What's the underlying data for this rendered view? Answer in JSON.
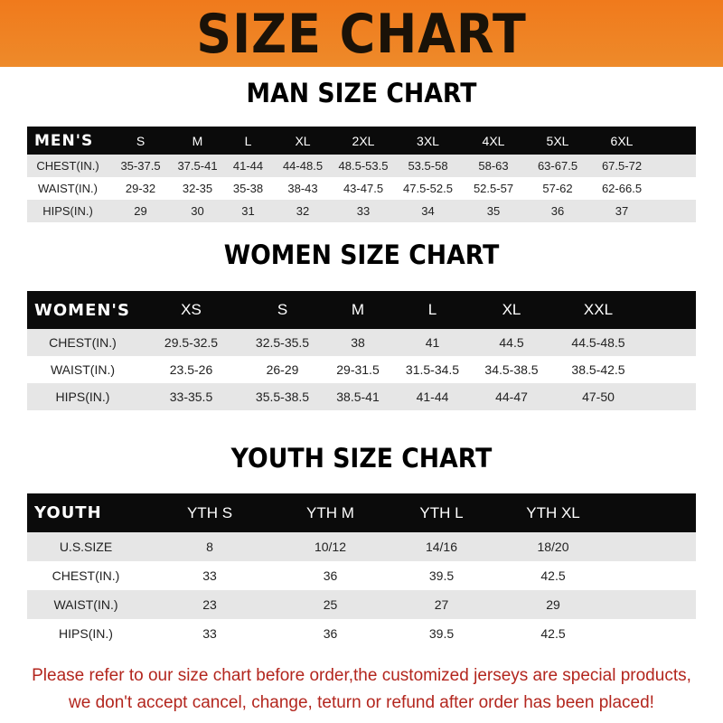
{
  "title": "SIZE CHART",
  "colors": {
    "banner": "#f07a1c",
    "header_row": "#0b0b0b",
    "notice": "#b3261e"
  },
  "men": {
    "title": "MAN SIZE CHART",
    "header": [
      "MEN'S",
      "S",
      "M",
      "L",
      "XL",
      "2XL",
      "3XL",
      "4XL",
      "5XL",
      "6XL"
    ],
    "rows": [
      [
        "CHEST(IN.)",
        "35-37.5",
        "37.5-41",
        "41-44",
        "44-48.5",
        "48.5-53.5",
        "53.5-58",
        "58-63",
        "63-67.5",
        "67.5-72"
      ],
      [
        "WAIST(IN.)",
        "29-32",
        "32-35",
        "35-38",
        "38-43",
        "43-47.5",
        "47.5-52.5",
        "52.5-57",
        "57-62",
        "62-66.5"
      ],
      [
        "HIPS(IN.)",
        "29",
        "30",
        "31",
        "32",
        "33",
        "34",
        "35",
        "36",
        "37"
      ]
    ]
  },
  "women": {
    "title": "WOMEN SIZE CHART",
    "header": [
      "WOMEN'S",
      "XS",
      "S",
      "M",
      "L",
      "XL",
      "XXL"
    ],
    "rows": [
      [
        "CHEST(IN.)",
        "29.5-32.5",
        "32.5-35.5",
        "38",
        "41",
        "44.5",
        "44.5-48.5"
      ],
      [
        "WAIST(IN.)",
        "23.5-26",
        "26-29",
        "29-31.5",
        "31.5-34.5",
        "34.5-38.5",
        "38.5-42.5"
      ],
      [
        "HIPS(IN.)",
        "33-35.5",
        "35.5-38.5",
        "38.5-41",
        "41-44",
        "44-47",
        "47-50"
      ]
    ]
  },
  "youth": {
    "title": "YOUTH SIZE CHART",
    "header": [
      "YOUTH",
      "YTH S",
      "YTH M",
      "YTH L",
      "YTH XL"
    ],
    "rows": [
      [
        "U.S.SIZE",
        "8",
        "10/12",
        "14/16",
        "18/20"
      ],
      [
        "CHEST(IN.)",
        "33",
        "36",
        "39.5",
        "42.5"
      ],
      [
        "WAIST(IN.)",
        "23",
        "25",
        "27",
        "29"
      ],
      [
        "HIPS(IN.)",
        "33",
        "36",
        "39.5",
        "42.5"
      ]
    ]
  },
  "notice": {
    "line1": "Please refer to our size chart before order,the customized jerseys are special products,",
    "line2": "we don't accept cancel, change, teturn or refund after order has been placed!"
  }
}
